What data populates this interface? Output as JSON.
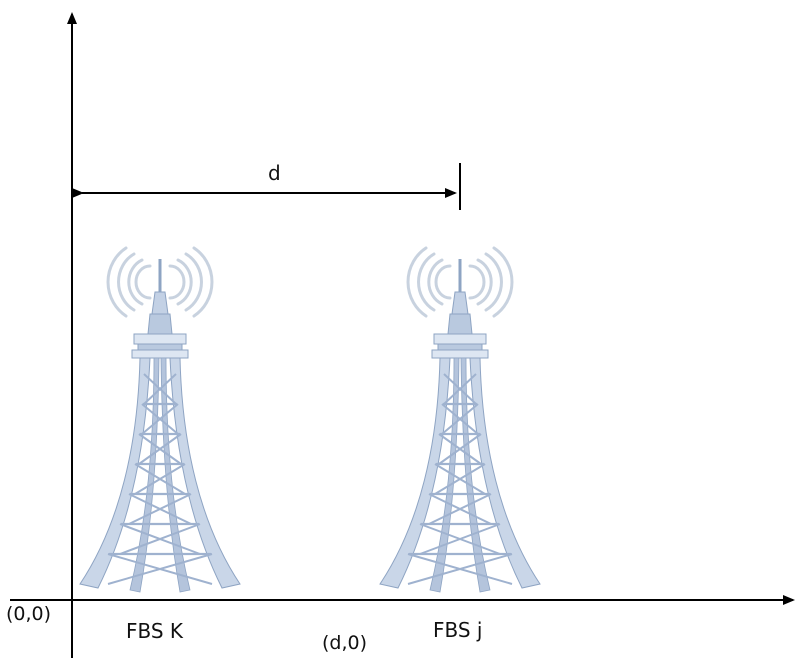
{
  "labels": {
    "distance": "d",
    "origin": "(0,0)",
    "point_d": "(d,0)",
    "tower_k": "FBS K",
    "tower_j": "FBS j"
  },
  "colors": {
    "axis": "#000000",
    "tower_light": "#dde6f2",
    "tower_mid": "#b9c9df",
    "tower_dark": "#8ea4c3",
    "signal": "#c8d2df"
  },
  "icons": {
    "tower": "antenna-tower-icon",
    "signal": "radio-waves-icon"
  }
}
